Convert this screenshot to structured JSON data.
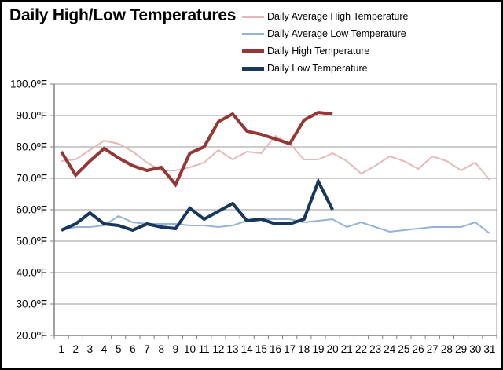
{
  "title": "Daily High/Low Temperatures",
  "chart_data": {
    "type": "line",
    "title": "Daily High/Low Temperatures",
    "xlabel": "",
    "ylabel": "",
    "x": [
      1,
      2,
      3,
      4,
      5,
      6,
      7,
      8,
      9,
      10,
      11,
      12,
      13,
      14,
      15,
      16,
      17,
      18,
      19,
      20,
      21,
      22,
      23,
      24,
      25,
      26,
      27,
      28,
      29,
      30,
      31
    ],
    "x_tick_labels": [
      "1",
      "2",
      "3",
      "4",
      "5",
      "6",
      "7",
      "8",
      "9",
      "10",
      "11",
      "12",
      "13",
      "14",
      "15",
      "16",
      "17",
      "18",
      "19",
      "20",
      "21",
      "22",
      "23",
      "24",
      "25",
      "26",
      "27",
      "28",
      "29",
      "30",
      "31"
    ],
    "ylim": [
      20,
      100
    ],
    "y_ticks": [
      100,
      90,
      80,
      70,
      60,
      50,
      40,
      30,
      20
    ],
    "y_tick_labels": [
      "100.0ºF",
      "90.0ºF",
      "80.0ºF",
      "70.0ºF",
      "60.0ºF",
      "50.0ºF",
      "40.0ºF",
      "30.0ºF",
      "20.0ºF"
    ],
    "grid": true,
    "legend_position": "top-right",
    "grid_color": "#9a9a9a",
    "axis_color": "#808080",
    "series": [
      {
        "name": "Daily Average High Temperature",
        "color": "#e6b9b8",
        "width": 2,
        "values": [
          75.5,
          76,
          79,
          82,
          81,
          78.5,
          75,
          72.5,
          72.5,
          73.5,
          75,
          79,
          76,
          78.5,
          78,
          83.5,
          81,
          76,
          76,
          78,
          75.5,
          71.5,
          74,
          77,
          75.5,
          73,
          77,
          75.5,
          72.5,
          75,
          69.5
        ]
      },
      {
        "name": "Daily Average Low Temperature",
        "color": "#95b3d7",
        "width": 2,
        "values": [
          53.5,
          54.5,
          54.5,
          55,
          58,
          56,
          55.5,
          55.5,
          55.5,
          55,
          55,
          54.5,
          55,
          56.5,
          57,
          57,
          57,
          56,
          56.5,
          57,
          54.5,
          56,
          54.5,
          53,
          53.5,
          54,
          54.5,
          54.5,
          54.5,
          56,
          52.5
        ]
      },
      {
        "name": "Daily High Temperature",
        "color": "#953735",
        "width": 4,
        "values": [
          78.5,
          71,
          75.5,
          79.5,
          76.5,
          74,
          72.5,
          73.5,
          68,
          78,
          80,
          88,
          90.5,
          85,
          84,
          82.5,
          81,
          88.5,
          91,
          90.5,
          null,
          null,
          null,
          null,
          null,
          null,
          null,
          null,
          null,
          null,
          null
        ]
      },
      {
        "name": "Daily Low Temperature",
        "color": "#17375d",
        "width": 4,
        "values": [
          53.5,
          55.5,
          59,
          55.5,
          55,
          53.5,
          55.5,
          54.5,
          54,
          60.5,
          57,
          59.5,
          62,
          56.5,
          57,
          55.5,
          55.5,
          57,
          69,
          60,
          null,
          null,
          null,
          null,
          null,
          null,
          null,
          null,
          null,
          null,
          null
        ]
      }
    ]
  }
}
